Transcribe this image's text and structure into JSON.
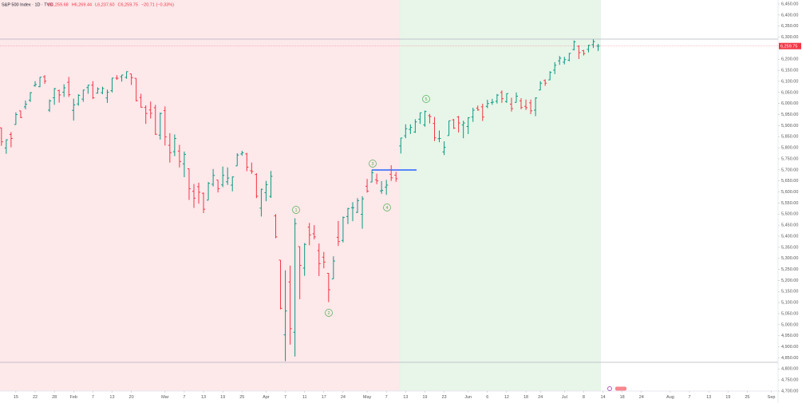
{
  "chart_data": {
    "type": "ohlc",
    "title": "S&P 500 Index · 1D · TVC",
    "header_values": [
      "O6,259.68",
      "H6,269.44",
      "L6,237.60",
      "C6,259.75",
      "−20.71 (−0.33%)"
    ],
    "up_color": "#089981",
    "down_color": "#f23645",
    "open": [
      5890,
      5799,
      5860,
      5905,
      5967,
      5985,
      6015,
      6081,
      6076,
      6121,
      5970,
      6026,
      6058,
      6051,
      6096,
      5969,
      5998,
      6020,
      6072,
      6083,
      6047,
      6049,
      6025,
      6058,
      6115,
      6121,
      6118,
      6134,
      6114,
      6027,
      5982,
      5971,
      5981,
      5857,
      5968,
      5811,
      5782,
      5785,
      5727,
      5705,
      5603,
      5624,
      5594,
      5563,
      5635,
      5654,
      5632,
      5646,
      5631,
      5718,
      5772,
      5772,
      5696,
      5679,
      5527,
      5597,
      5580,
      5492,
      5292,
      4954,
      5193,
      4966,
      5353,
      5256,
      5441,
      5411,
      5335,
      5305,
      5232,
      5207,
      5395,
      5381,
      5489,
      5529,
      5508,
      5499,
      5626,
      5645,
      5655,
      5605,
      5622,
      5680,
      5676,
      5808,
      5854,
      5883,
      5871,
      5929,
      5903,
      5945,
      5910,
      5841,
      5781,
      5855,
      5926,
      5939,
      5903,
      5896,
      5939,
      5979,
      5985,
      5987,
      6004,
      6010,
      6050,
      6009,
      5997,
      6005,
      6012,
      5987,
      6003,
      5970,
      6061,
      6104,
      6107,
      6151,
      6193,
      6187,
      6196,
      6244,
      6259,
      6239,
      6245,
      6266,
      6259.68
    ],
    "high": [
      5891,
      5838,
      5871,
      5960,
      5967,
      6013,
      6051,
      6101,
      6119,
      6128,
      6018,
      6070,
      6063,
      6087,
      6120,
      6022,
      6042,
      6062,
      6084,
      6101,
      6073,
      6076,
      6063,
      6116,
      6128,
      6129,
      6145,
      6134,
      6114,
      6044,
      5992,
      6009,
      5994,
      5959,
      5987,
      5866,
      5860,
      5813,
      5783,
      5705,
      5636,
      5642,
      5598,
      5645,
      5704,
      5654,
      5715,
      5711,
      5670,
      5775,
      5786,
      5777,
      5733,
      5685,
      5615,
      5650,
      5695,
      5500,
      5292,
      5246,
      5267,
      5481,
      5353,
      5369,
      5460,
      5450,
      5367,
      5329,
      5233,
      5309,
      5469,
      5489,
      5528,
      5554,
      5572,
      5581,
      5659,
      5700,
      5683,
      5649,
      5655,
      5721,
      5691,
      5845,
      5906,
      5906,
      5929,
      5958,
      5968,
      5953,
      5939,
      5878,
      5829,
      5922,
      5930,
      5944,
      5922,
      5938,
      5981,
      5991,
      5999,
      6017,
      6021,
      6043,
      6059,
      6046,
      6026,
      6050,
      6024,
      6018,
      6018,
      6028,
      6101,
      6109,
      6146,
      6187,
      6215,
      6211,
      6228,
      6285,
      6263,
      6242,
      6265,
      6290,
      6269.44
    ],
    "low": [
      5809,
      5773,
      5802,
      5905,
      5934,
      5974,
      6007,
      6076,
      6074,
      6089,
      5962,
      5994,
      6004,
      6030,
      6030,
      5923,
      5990,
      6008,
      6044,
      6020,
      6045,
      6042,
      6003,
      6050,
      6107,
      6099,
      6112,
      6084,
      6009,
      5981,
      5908,
      5932,
      5858,
      5837,
      5810,
      5733,
      5762,
      5711,
      5667,
      5564,
      5528,
      5547,
      5505,
      5563,
      5625,
      5598,
      5622,
      5632,
      5603,
      5718,
      5764,
      5694,
      5682,
      5572,
      5489,
      5558,
      5573,
      5391,
      5069,
      4835,
      4910,
      4856,
      5115,
      5221,
      5359,
      5386,
      5220,
      5255,
      5102,
      5207,
      5356,
      5372,
      5455,
      5468,
      5505,
      5434,
      5597,
      5644,
      5635,
      5592,
      5587,
      5650,
      5646,
      5774,
      5843,
      5862,
      5867,
      5908,
      5895,
      5910,
      5830,
      5825,
      5767,
      5855,
      5885,
      5869,
      5843,
      5862,
      5917,
      5967,
      5921,
      5979,
      5994,
      6000,
      6003,
      6003,
      5964,
      6005,
      5974,
      5971,
      5952,
      5943,
      6060,
      6080,
      6106,
      6133,
      6175,
      6177,
      6191,
      6240,
      6201,
      6217,
      6231,
      6251,
      6237.6
    ],
    "close": [
      5827,
      5836,
      5842,
      5950,
      5937,
      5997,
      6049,
      6086,
      6119,
      6101,
      6012,
      6067,
      6039,
      6071,
      6040,
      5994,
      6037,
      6061,
      6083,
      6026,
      6066,
      6068,
      6051,
      6115,
      6114,
      6129,
      6144,
      6117,
      6013,
      5983,
      5955,
      5956,
      5861,
      5955,
      5849,
      5778,
      5842,
      5738,
      5770,
      5615,
      5572,
      5599,
      5522,
      5639,
      5675,
      5615,
      5675,
      5663,
      5668,
      5767,
      5777,
      5712,
      5693,
      5581,
      5612,
      5633,
      5671,
      5397,
      5074,
      5062,
      4982,
      5457,
      5268,
      5363,
      5406,
      5397,
      5276,
      5283,
      5158,
      5288,
      5376,
      5485,
      5525,
      5529,
      5561,
      5569,
      5604,
      5687,
      5650,
      5607,
      5631,
      5664,
      5660,
      5844,
      5886,
      5892,
      5917,
      5958,
      5964,
      5941,
      5845,
      5842,
      5802,
      5922,
      5889,
      5912,
      5912,
      5936,
      5970,
      5971,
      5939,
      6000,
      6006,
      6038,
      6022,
      6045,
      5977,
      6033,
      5982,
      5981,
      5967,
      6025,
      6092,
      6092,
      6141,
      6173,
      6205,
      6198,
      6227,
      6279,
      6230,
      6226,
      6263,
      6280,
      6259.75
    ],
    "xlim": [
      -0.3,
      161.4
    ],
    "xticks": [
      {
        "value": 3,
        "label": "15"
      },
      {
        "value": 7,
        "label": "22"
      },
      {
        "value": 11,
        "label": "28"
      },
      {
        "value": 15,
        "label": "Feb"
      },
      {
        "value": 19,
        "label": "7"
      },
      {
        "value": 23,
        "label": "13"
      },
      {
        "value": 27,
        "label": "20"
      },
      {
        "value": 34,
        "label": "Mar"
      },
      {
        "value": 38,
        "label": "7"
      },
      {
        "value": 42,
        "label": "13"
      },
      {
        "value": 46,
        "label": "19"
      },
      {
        "value": 50,
        "label": "25"
      },
      {
        "value": 55,
        "label": "Apr"
      },
      {
        "value": 59,
        "label": "7"
      },
      {
        "value": 63,
        "label": "11"
      },
      {
        "value": 67,
        "label": "17"
      },
      {
        "value": 71,
        "label": "24"
      },
      {
        "value": 76,
        "label": "May"
      },
      {
        "value": 80,
        "label": "7"
      },
      {
        "value": 84,
        "label": "13"
      },
      {
        "value": 88,
        "label": "19"
      },
      {
        "value": 92,
        "label": "23"
      },
      {
        "value": 97,
        "label": "Jun"
      },
      {
        "value": 101,
        "label": "6"
      },
      {
        "value": 105,
        "label": "12"
      },
      {
        "value": 109,
        "label": "18"
      },
      {
        "value": 112,
        "label": "24"
      },
      {
        "value": 117,
        "label": "Jul"
      },
      {
        "value": 121,
        "label": "8"
      },
      {
        "value": 125,
        "label": "14"
      },
      {
        "value": 129,
        "label": "18"
      },
      {
        "value": 133,
        "label": "24"
      },
      {
        "value": 139,
        "label": "Aug"
      },
      {
        "value": 143,
        "label": "7"
      },
      {
        "value": 147,
        "label": "13"
      },
      {
        "value": 151,
        "label": "19"
      },
      {
        "value": 155,
        "label": "25"
      },
      {
        "value": 160,
        "label": "Sep"
      }
    ],
    "ylim": [
      4700,
      6468
    ],
    "yticks": [
      {
        "value": 6450,
        "label": "6,450.00"
      },
      {
        "value": 6400,
        "label": "6,400.00"
      },
      {
        "value": 6350,
        "label": "6,350.00"
      },
      {
        "value": 6300,
        "label": "6,300.00"
      },
      {
        "value": 6200,
        "label": "6,200.00"
      },
      {
        "value": 6150,
        "label": "6,150.00"
      },
      {
        "value": 6100,
        "label": "6,100.00"
      },
      {
        "value": 6050,
        "label": "6,050.00"
      },
      {
        "value": 6000,
        "label": "6,000.00"
      },
      {
        "value": 5950,
        "label": "5,950.00"
      },
      {
        "value": 5900,
        "label": "5,900.00"
      },
      {
        "value": 5850,
        "label": "5,850.00"
      },
      {
        "value": 5800,
        "label": "5,800.00"
      },
      {
        "value": 5750,
        "label": "5,750.00"
      },
      {
        "value": 5700,
        "label": "5,700.00"
      },
      {
        "value": 5650,
        "label": "5,650.00"
      },
      {
        "value": 5600,
        "label": "5,600.00"
      },
      {
        "value": 5550,
        "label": "5,550.00"
      },
      {
        "value": 5500,
        "label": "5,500.00"
      },
      {
        "value": 5450,
        "label": "5,450.00"
      },
      {
        "value": 5400,
        "label": "5,400.00"
      },
      {
        "value": 5350,
        "label": "5,350.00"
      },
      {
        "value": 5300,
        "label": "5,300.00"
      },
      {
        "value": 5250,
        "label": "5,250.00"
      },
      {
        "value": 5200,
        "label": "5,200.00"
      },
      {
        "value": 5150,
        "label": "5,150.00"
      },
      {
        "value": 5100,
        "label": "5,100.00"
      },
      {
        "value": 5050,
        "label": "5,050.00"
      },
      {
        "value": 5000,
        "label": "5,000.00"
      },
      {
        "value": 4950,
        "label": "4,950.00"
      },
      {
        "value": 4900,
        "label": "4,900.00"
      },
      {
        "value": 4850,
        "label": "4,850.00"
      },
      {
        "value": 4800,
        "label": "4,800.00"
      },
      {
        "value": 4750,
        "label": "4,750.00"
      },
      {
        "value": 4700,
        "label": "4,700.00"
      }
    ],
    "last_price": {
      "value": 6259.75,
      "label": "6,259.75"
    },
    "wave_labels": [
      "1",
      "2",
      "3",
      "4",
      "5"
    ]
  }
}
